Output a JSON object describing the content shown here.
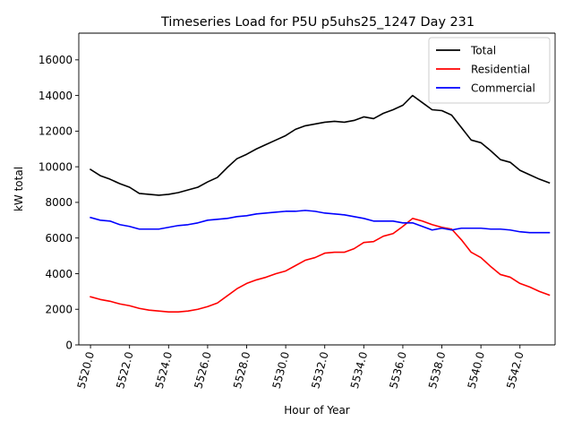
{
  "chart_data": {
    "type": "line",
    "title": "Timeseries Load for P5U p5uhs25_1247  Day 231",
    "xlabel": "Hour of Year",
    "ylabel": "kW total",
    "xlim": [
      5519.4,
      5543.8
    ],
    "ylim": [
      0,
      17500
    ],
    "xticks": [
      5520,
      5522,
      5524,
      5526,
      5528,
      5530,
      5532,
      5534,
      5536,
      5538,
      5540,
      5542
    ],
    "xtick_labels": [
      "5520.0",
      "5522.0",
      "5524.0",
      "5526.0",
      "5528.0",
      "5530.0",
      "5532.0",
      "5534.0",
      "5536.0",
      "5538.0",
      "5540.0",
      "5542.0"
    ],
    "yticks": [
      0,
      2000,
      4000,
      6000,
      8000,
      10000,
      12000,
      14000,
      16000
    ],
    "ytick_labels": [
      "0",
      "2000",
      "4000",
      "6000",
      "8000",
      "10000",
      "12000",
      "14000",
      "16000"
    ],
    "legend_position": "top-right",
    "grid": false,
    "x": [
      5520.0,
      5520.5,
      5521.0,
      5521.5,
      5522.0,
      5522.5,
      5523.0,
      5523.5,
      5524.0,
      5524.5,
      5525.0,
      5525.5,
      5526.0,
      5526.5,
      5527.0,
      5527.5,
      5528.0,
      5528.5,
      5529.0,
      5529.5,
      5530.0,
      5530.5,
      5531.0,
      5531.5,
      5532.0,
      5532.5,
      5533.0,
      5533.5,
      5534.0,
      5534.5,
      5535.0,
      5535.5,
      5536.0,
      5536.5,
      5537.0,
      5537.5,
      5538.0,
      5538.5,
      5539.0,
      5539.5,
      5540.0,
      5540.5,
      5541.0,
      5541.5,
      5542.0,
      5542.5,
      5543.0,
      5543.5
    ],
    "series": [
      {
        "name": "Total",
        "color": "#000000",
        "values": [
          9850,
          9500,
          9300,
          9050,
          8850,
          8500,
          8450,
          8400,
          8450,
          8550,
          8700,
          8850,
          9150,
          9400,
          9950,
          10450,
          10700,
          11000,
          11250,
          11500,
          11750,
          12100,
          12300,
          12400,
          12500,
          12550,
          12500,
          12600,
          12800,
          12700,
          13000,
          13200,
          13450,
          14000,
          13600,
          13200,
          13150,
          12900,
          12200,
          11500,
          11350,
          10900,
          10400,
          10250,
          9800,
          9550,
          9300,
          9100
        ]
      },
      {
        "name": "Residential",
        "color": "#ff0000",
        "values": [
          2700,
          2550,
          2450,
          2300,
          2200,
          2050,
          1950,
          1900,
          1850,
          1850,
          1900,
          2000,
          2150,
          2350,
          2750,
          3150,
          3450,
          3650,
          3800,
          4000,
          4150,
          4450,
          4750,
          4900,
          5150,
          5200,
          5200,
          5400,
          5750,
          5800,
          6100,
          6250,
          6650,
          7100,
          6950,
          6750,
          6600,
          6500,
          5900,
          5200,
          4900,
          4400,
          3950,
          3800,
          3450,
          3250,
          3000,
          2800
        ]
      },
      {
        "name": "Commercial",
        "color": "#0000ff",
        "values": [
          7150,
          7000,
          6950,
          6750,
          6650,
          6500,
          6500,
          6500,
          6600,
          6700,
          6750,
          6850,
          7000,
          7050,
          7100,
          7200,
          7250,
          7350,
          7400,
          7450,
          7500,
          7500,
          7550,
          7500,
          7400,
          7350,
          7300,
          7200,
          7100,
          6950,
          6950,
          6950,
          6850,
          6850,
          6650,
          6450,
          6550,
          6450,
          6550,
          6550,
          6550,
          6500,
          6500,
          6450,
          6350,
          6300,
          6300,
          6300
        ]
      }
    ]
  }
}
